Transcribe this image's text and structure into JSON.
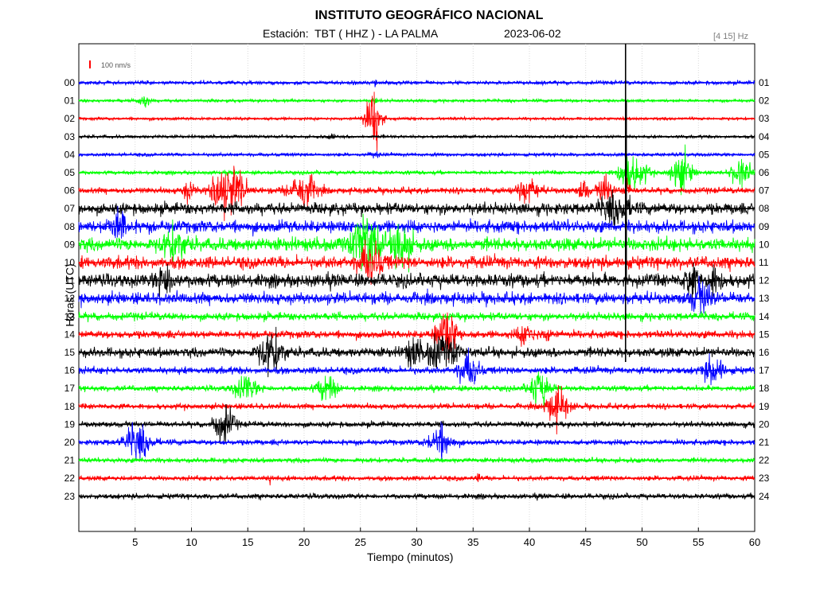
{
  "header": {
    "title": "INSTITUTO GEOGRÁFICO NACIONAL",
    "station": "Estación:  TBT ( HHZ ) - LA PALMA",
    "date": "2023-06-02",
    "filter": "[4 15] Hz"
  },
  "chart_data": {
    "type": "line",
    "title": "INSTITUTO GEOGRÁFICO NACIONAL",
    "xlabel": "Tiempo (minutos)",
    "ylabel": "Horas (UTC)",
    "xlim": [
      0,
      60
    ],
    "x_ticks": [
      5,
      10,
      15,
      20,
      25,
      30,
      35,
      40,
      45,
      50,
      55,
      60
    ],
    "x_tick_labels": [
      "5",
      "10",
      "15",
      "20",
      "25",
      "30",
      "35",
      "40",
      "45",
      "50",
      "55",
      "60"
    ],
    "grid": "vertical dotted every 5 minutes",
    "scale_label": "100 nm/s",
    "color_cycle": [
      "#0000ff",
      "#00ff00",
      "#ff0000",
      "#000000"
    ],
    "rows": [
      {
        "left": "00",
        "right": "01",
        "color": "#0000ff",
        "noise": 2.2,
        "events": [
          {
            "t": 26.3,
            "amp": 6,
            "dur": 0.1
          }
        ]
      },
      {
        "left": "01",
        "right": "02",
        "color": "#00ff00",
        "noise": 1.8,
        "events": [
          {
            "t": 5.8,
            "amp": 8,
            "dur": 0.5
          },
          {
            "t": 26.3,
            "amp": 4,
            "dur": 0.2
          }
        ]
      },
      {
        "left": "02",
        "right": "03",
        "color": "#ff0000",
        "noise": 1.8,
        "events": [
          {
            "t": 26.1,
            "amp": 26,
            "dur": 0.7
          },
          {
            "t": 26.4,
            "amp": 40,
            "dur": 0.15
          }
        ]
      },
      {
        "left": "03",
        "right": "04",
        "color": "#000000",
        "noise": 1.8,
        "events": [
          {
            "t": 22.5,
            "amp": 3,
            "dur": 0.3
          }
        ]
      },
      {
        "left": "04",
        "right": "05",
        "color": "#0000ff",
        "noise": 2.0,
        "events": [
          {
            "t": 26.3,
            "amp": 4,
            "dur": 0.3
          }
        ]
      },
      {
        "left": "05",
        "right": "06",
        "color": "#00ff00",
        "noise": 2.2,
        "events": [
          {
            "t": 48.5,
            "amp": 12,
            "dur": 0.8
          },
          {
            "t": 49.5,
            "amp": 16,
            "dur": 1.0
          },
          {
            "t": 53.5,
            "amp": 22,
            "dur": 0.9
          },
          {
            "t": 58.8,
            "amp": 18,
            "dur": 0.8
          }
        ]
      },
      {
        "left": "06",
        "right": "07",
        "color": "#ff0000",
        "noise": 3.5,
        "events": [
          {
            "t": 9.7,
            "amp": 12,
            "dur": 0.5
          },
          {
            "t": 12.4,
            "amp": 22,
            "dur": 0.8
          },
          {
            "t": 13.8,
            "amp": 24,
            "dur": 1.0
          },
          {
            "t": 19.9,
            "amp": 22,
            "dur": 1.1
          },
          {
            "t": 39.8,
            "amp": 14,
            "dur": 1.0
          },
          {
            "t": 44.8,
            "amp": 14,
            "dur": 0.4
          },
          {
            "t": 46.7,
            "amp": 18,
            "dur": 0.6
          },
          {
            "t": 48.6,
            "amp": 10,
            "dur": 0.3
          }
        ]
      },
      {
        "left": "07",
        "right": "08",
        "color": "#000000",
        "noise": 6.5,
        "events": [
          {
            "t": 47.7,
            "amp": 16,
            "dur": 1.2
          }
        ]
      },
      {
        "left": "08",
        "right": "09",
        "color": "#0000ff",
        "noise": 7.0,
        "events": [
          {
            "t": 3.6,
            "amp": 18,
            "dur": 0.8
          }
        ]
      },
      {
        "left": "09",
        "right": "10",
        "color": "#00ff00",
        "noise": 7.5,
        "events": [
          {
            "t": 8.5,
            "amp": 18,
            "dur": 1.0
          },
          {
            "t": 25.5,
            "amp": 32,
            "dur": 1.2
          },
          {
            "t": 28.7,
            "amp": 30,
            "dur": 0.8
          }
        ]
      },
      {
        "left": "10",
        "right": "11",
        "color": "#ff0000",
        "noise": 7.0,
        "events": [
          {
            "t": 25.9,
            "amp": 22,
            "dur": 1.0
          }
        ]
      },
      {
        "left": "11",
        "right": "12",
        "color": "#000000",
        "noise": 7.5,
        "events": [
          {
            "t": 7.7,
            "amp": 18,
            "dur": 0.8
          },
          {
            "t": 54.3,
            "amp": 22,
            "dur": 0.5
          },
          {
            "t": 56.4,
            "amp": 16,
            "dur": 0.6
          }
        ]
      },
      {
        "left": "12",
        "right": "13",
        "color": "#0000ff",
        "noise": 6.5,
        "events": [
          {
            "t": 55.3,
            "amp": 18,
            "dur": 0.9
          }
        ]
      },
      {
        "left": "13",
        "right": "14",
        "color": "#00ff00",
        "noise": 4.5,
        "events": []
      },
      {
        "left": "14",
        "right": "15",
        "color": "#ff0000",
        "noise": 4.5,
        "events": [
          {
            "t": 32.7,
            "amp": 28,
            "dur": 0.9
          },
          {
            "t": 39.7,
            "amp": 12,
            "dur": 0.7
          },
          {
            "t": 41.6,
            "amp": 8,
            "dur": 0.4
          }
        ]
      },
      {
        "left": "15",
        "right": "16",
        "color": "#000000",
        "noise": 5.5,
        "events": [
          {
            "t": 17.1,
            "amp": 24,
            "dur": 1.0
          },
          {
            "t": 29.7,
            "amp": 16,
            "dur": 0.7
          },
          {
            "t": 31.7,
            "amp": 18,
            "dur": 0.8
          },
          {
            "t": 33.1,
            "amp": 14,
            "dur": 0.6
          }
        ]
      },
      {
        "left": "16",
        "right": "17",
        "color": "#0000ff",
        "noise": 4.0,
        "events": [
          {
            "t": 34.6,
            "amp": 20,
            "dur": 0.9
          },
          {
            "t": 56.4,
            "amp": 16,
            "dur": 0.9
          }
        ]
      },
      {
        "left": "17",
        "right": "18",
        "color": "#00ff00",
        "noise": 3.2,
        "events": [
          {
            "t": 14.8,
            "amp": 14,
            "dur": 1.0
          },
          {
            "t": 22.0,
            "amp": 16,
            "dur": 0.8
          },
          {
            "t": 40.9,
            "amp": 20,
            "dur": 0.9
          }
        ]
      },
      {
        "left": "18",
        "right": "19",
        "color": "#ff0000",
        "noise": 3.2,
        "events": [
          {
            "t": 42.5,
            "amp": 22,
            "dur": 0.9
          }
        ]
      },
      {
        "left": "19",
        "right": "20",
        "color": "#000000",
        "noise": 3.2,
        "events": [
          {
            "t": 12.9,
            "amp": 24,
            "dur": 0.8
          }
        ]
      },
      {
        "left": "20",
        "right": "21",
        "color": "#0000ff",
        "noise": 3.2,
        "events": [
          {
            "t": 5.2,
            "amp": 20,
            "dur": 1.1
          },
          {
            "t": 32.1,
            "amp": 18,
            "dur": 1.0
          }
        ]
      },
      {
        "left": "21",
        "right": "22",
        "color": "#00ff00",
        "noise": 2.8,
        "events": []
      },
      {
        "left": "22",
        "right": "23",
        "color": "#ff0000",
        "noise": 2.8,
        "events": [
          {
            "t": 17.0,
            "amp": 5,
            "dur": 0.2
          },
          {
            "t": 35.4,
            "amp": 5,
            "dur": 0.2
          }
        ]
      },
      {
        "left": "23",
        "right": "24",
        "color": "#000000",
        "noise": 3.0,
        "events": []
      }
    ],
    "spike": {
      "t": 48.5,
      "rows": [
        0,
        15
      ],
      "color": "#000000"
    }
  }
}
